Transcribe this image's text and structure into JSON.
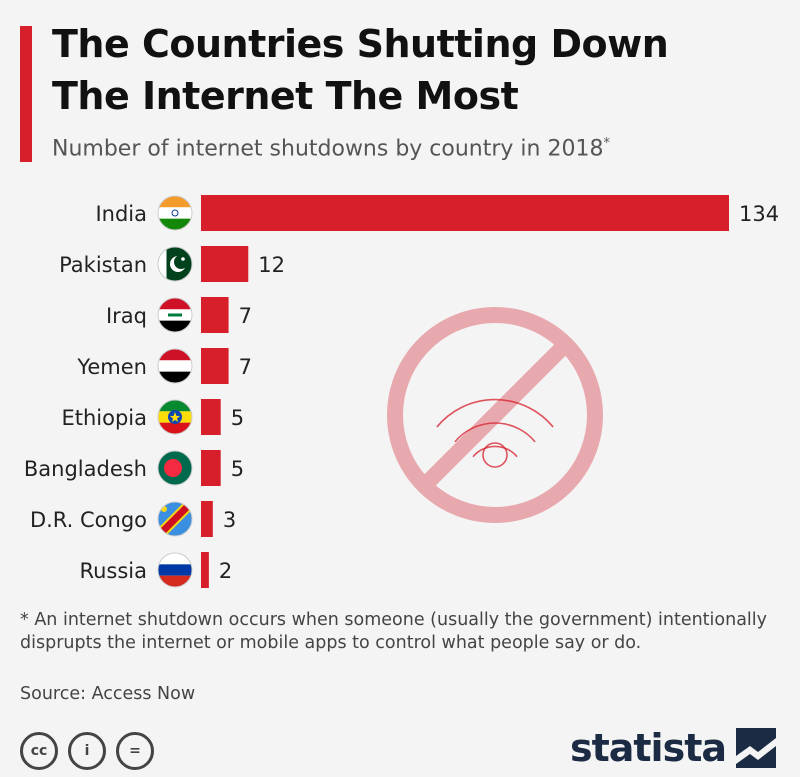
{
  "header": {
    "title_line1": "The Countries Shutting Down",
    "title_line2": "The Internet The Most",
    "subtitle": "Number of internet shutdowns by country in 2018",
    "subtitle_mark": "*"
  },
  "chart_data": {
    "type": "bar",
    "orientation": "horizontal",
    "title": "The Countries Shutting Down The Internet The Most",
    "subtitle": "Number of internet shutdowns by country in 2018*",
    "categories": [
      "India",
      "Pakistan",
      "Iraq",
      "Yemen",
      "Ethiopia",
      "Bangladesh",
      "D.R. Congo",
      "Russia"
    ],
    "values": [
      134,
      12,
      7,
      7,
      5,
      5,
      3,
      2
    ],
    "xlim": [
      0,
      134
    ],
    "grid": false,
    "legend": "none",
    "bar_color": "#d71f2c"
  },
  "footnote": {
    "mark": "*",
    "text": "An internet shutdown occurs when someone (usually the government) intentionally disprupts the internet or mobile apps to control what people say or do."
  },
  "source": "Source: Access Now",
  "license_icons": [
    "cc-icon",
    "by-icon",
    "nd-icon"
  ],
  "license_glyphs": [
    "cc",
    "i",
    "="
  ],
  "brand": {
    "name": "statista",
    "color": "#1b2b44"
  },
  "decoration": {
    "icon": "no-wifi-icon",
    "color": "#e8a9ae"
  },
  "flags": [
    "india-flag-icon",
    "pakistan-flag-icon",
    "iraq-flag-icon",
    "yemen-flag-icon",
    "ethiopia-flag-icon",
    "bangladesh-flag-icon",
    "drcongo-flag-icon",
    "russia-flag-icon"
  ]
}
